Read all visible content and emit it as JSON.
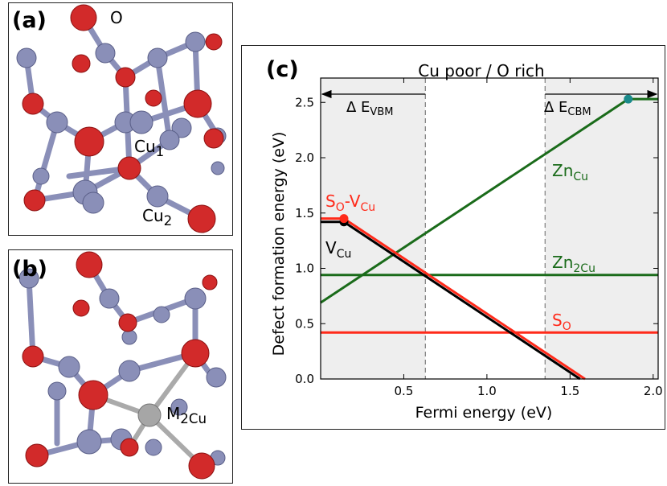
{
  "panels": {
    "a": {
      "tag": "(a)",
      "labels": {
        "o": "O",
        "cu1_base": "Cu",
        "cu1_sub": "1",
        "cu2_base": "Cu",
        "cu2_sub": "2"
      }
    },
    "b": {
      "tag": "(b)",
      "labels": {
        "m_base": "M",
        "m_sub": "2Cu"
      }
    },
    "c": {
      "tag": "(c)",
      "header": "Cu poor / O rich",
      "vbm_base": "Δ E",
      "vbm_sub": "VBM",
      "cbm_base": "Δ E",
      "cbm_sub": "CBM"
    }
  },
  "colors": {
    "oxygen": "#d22a2a",
    "copper": "#8a8fb8",
    "dopant": "#a6a6a6",
    "black_line": "#000000",
    "red_line": "#ff2a1a",
    "green_line": "#1a6b1a",
    "shade": "#eeeeee",
    "teal_dot": "#1a8a8a"
  },
  "chart_data": {
    "type": "line",
    "xlabel": "Fermi energy (eV)",
    "ylabel": "Defect formation energy (eV)",
    "xlim": [
      0.0,
      2.03
    ],
    "ylim": [
      0.0,
      2.72
    ],
    "xticks": [
      0.5,
      1.0,
      1.5,
      2.0
    ],
    "xtick_labels": [
      "0.5",
      "1.0",
      "1.5",
      "2.0"
    ],
    "yticks": [
      0.0,
      0.5,
      1.0,
      1.5,
      2.0,
      2.5
    ],
    "ytick_labels": [
      "0.0",
      "0.5",
      "1.0",
      "1.5",
      "2.0",
      "2.5"
    ],
    "shaded_regions": [
      [
        0.0,
        0.63
      ],
      [
        1.35,
        2.03
      ]
    ],
    "vbm_cbm_markers": [
      0.63,
      1.35
    ],
    "series": [
      {
        "name_base": "V",
        "name_sub": "Cu",
        "color": "#000000",
        "points": [
          [
            0.0,
            1.42
          ],
          [
            0.14,
            1.42
          ],
          [
            1.56,
            0.0
          ]
        ],
        "dot": [
          0.14,
          1.42
        ]
      },
      {
        "name_base": "S",
        "name_sub": "O",
        "name_mid": "-V",
        "name_sub2": "Cu",
        "color": "#ff2a1a",
        "points": [
          [
            0.0,
            1.45
          ],
          [
            0.14,
            1.45
          ],
          [
            1.59,
            0.0
          ]
        ],
        "dot": [
          0.14,
          1.45
        ]
      },
      {
        "name_base": "Zn",
        "name_sub": "Cu",
        "color": "#1a6b1a",
        "points": [
          [
            0.0,
            0.69
          ],
          [
            1.85,
            2.53
          ],
          [
            2.03,
            2.53
          ]
        ],
        "dot": [
          1.85,
          2.53
        ]
      },
      {
        "name_base": "Zn",
        "name_sub": "2Cu",
        "color": "#1a6b1a",
        "points": [
          [
            0.0,
            0.94
          ],
          [
            2.03,
            0.94
          ]
        ]
      },
      {
        "name_base": "S",
        "name_sub": "O",
        "color": "#ff2a1a",
        "points": [
          [
            0.0,
            0.42
          ],
          [
            2.03,
            0.42
          ]
        ]
      }
    ]
  }
}
